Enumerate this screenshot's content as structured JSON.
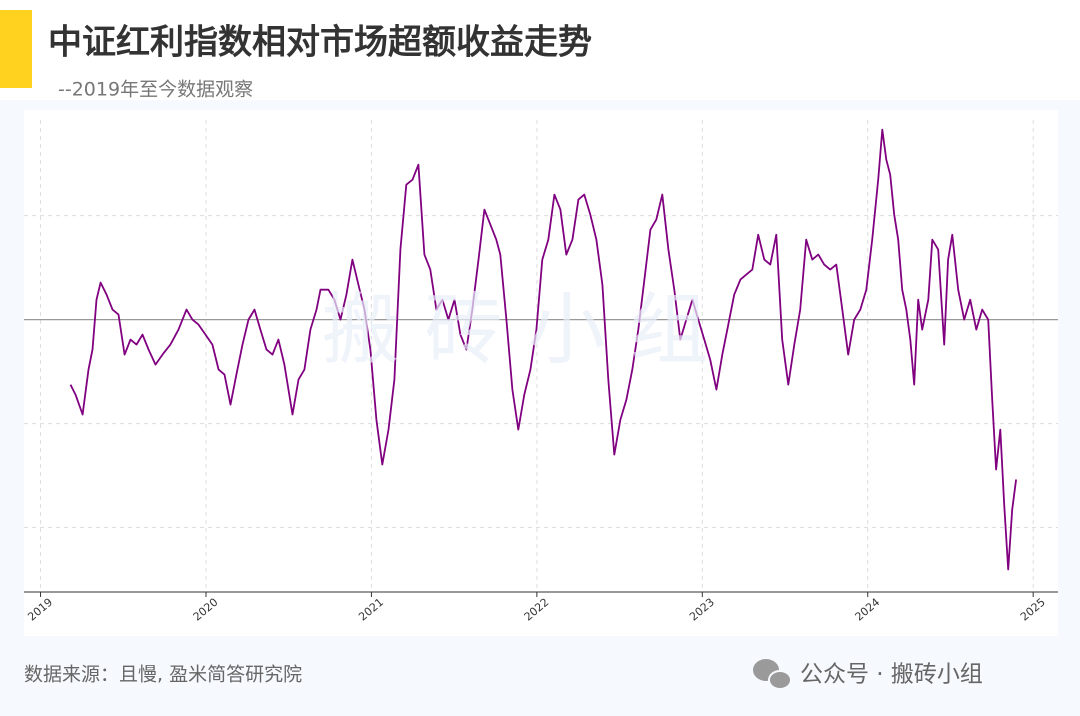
{
  "chart_data": {
    "type": "line",
    "title": "中证红利指数相对市场超额收益走势",
    "subtitle": "--2019年至今数据观察",
    "watermark": "搬 砖 小 组",
    "source": "数据来源：且慢, 盈米简答研究院",
    "brand": "公众号 · 搬砖小组",
    "color": "#800080",
    "baseline": 0,
    "xlim": [
      2018.9,
      2025.15
    ],
    "xticks": [
      2019,
      2020,
      2021,
      2022,
      2023,
      2024,
      2025
    ],
    "ylim": [
      -2.62,
      1.92
    ],
    "ygrid": [
      1,
      -1,
      -2
    ],
    "grid": true,
    "x": [
      2019.181,
      2019.211,
      2019.254,
      2019.29,
      2019.314,
      2019.338,
      2019.363,
      2019.399,
      2019.435,
      2019.471,
      2019.508,
      2019.544,
      2019.58,
      2019.616,
      2019.653,
      2019.695,
      2019.737,
      2019.785,
      2019.834,
      2019.882,
      2019.918,
      2019.955,
      2019.997,
      2020.039,
      2020.076,
      2020.112,
      2020.148,
      2020.184,
      2020.221,
      2020.257,
      2020.293,
      2020.329,
      2020.366,
      2020.402,
      2020.438,
      2020.474,
      2020.523,
      2020.559,
      2020.595,
      2020.631,
      2020.668,
      2020.692,
      2020.74,
      2020.776,
      2020.813,
      2020.849,
      2020.885,
      2020.921,
      2020.958,
      2020.994,
      2021.03,
      2021.066,
      2021.103,
      2021.139,
      2021.175,
      2021.211,
      2021.248,
      2021.284,
      2021.32,
      2021.356,
      2021.393,
      2021.429,
      2021.465,
      2021.502,
      2021.538,
      2021.574,
      2021.61,
      2021.647,
      2021.683,
      2021.719,
      2021.755,
      2021.779,
      2021.816,
      2021.852,
      2021.888,
      2021.924,
      2021.961,
      2021.997,
      2022.033,
      2022.069,
      2022.106,
      2022.142,
      2022.178,
      2022.215,
      2022.251,
      2022.287,
      2022.323,
      2022.36,
      2022.396,
      2022.432,
      2022.468,
      2022.505,
      2022.541,
      2022.577,
      2022.613,
      2022.65,
      2022.686,
      2022.722,
      2022.758,
      2022.795,
      2022.831,
      2022.867,
      2022.903,
      2022.94,
      2022.976,
      2023.012,
      2023.048,
      2023.085,
      2023.121,
      2023.157,
      2023.193,
      2023.23,
      2023.266,
      2023.302,
      2023.338,
      2023.375,
      2023.411,
      2023.447,
      2023.483,
      2023.52,
      2023.556,
      2023.592,
      2023.628,
      2023.665,
      2023.701,
      2023.737,
      2023.773,
      2023.81,
      2023.846,
      2023.882,
      2023.918,
      2023.955,
      2023.991,
      2024.027,
      2024.063,
      2024.088,
      2024.112,
      2024.136,
      2024.16,
      2024.184,
      2024.208,
      2024.233,
      2024.257,
      2024.281,
      2024.305,
      2024.329,
      2024.366,
      2024.39,
      2024.426,
      2024.462,
      2024.486,
      2024.511,
      2024.547,
      2024.583,
      2024.619,
      2024.656,
      2024.692,
      2024.728,
      2024.752,
      2024.776,
      2024.801,
      2024.825,
      2024.849,
      2024.873,
      2024.897
    ],
    "values": [
      -0.625,
      -0.721,
      -0.913,
      -0.481,
      -0.288,
      0.192,
      0.356,
      0.24,
      0.096,
      0.048,
      -0.337,
      -0.192,
      -0.24,
      -0.144,
      -0.288,
      -0.433,
      -0.337,
      -0.24,
      -0.096,
      0.096,
      0,
      -0.048,
      -0.144,
      -0.24,
      -0.481,
      -0.529,
      -0.817,
      -0.529,
      -0.24,
      0,
      0.096,
      -0.096,
      -0.288,
      -0.337,
      -0.192,
      -0.433,
      -0.913,
      -0.577,
      -0.481,
      -0.096,
      0.096,
      0.288,
      0.288,
      0.192,
      0,
      0.24,
      0.577,
      0.337,
      0.096,
      -0.288,
      -0.962,
      -1.394,
      -1.058,
      -0.577,
      0.673,
      1.298,
      1.346,
      1.49,
      0.625,
      0.481,
      0.096,
      0.192,
      0,
      0.192,
      -0.144,
      -0.288,
      0.096,
      0.577,
      1.058,
      0.913,
      0.769,
      0.625,
      0,
      -0.673,
      -1.058,
      -0.721,
      -0.481,
      -0.096,
      0.577,
      0.769,
      1.202,
      1.058,
      0.625,
      0.769,
      1.154,
      1.202,
      1.01,
      0.769,
      0.337,
      -0.577,
      -1.298,
      -0.962,
      -0.769,
      -0.481,
      -0.096,
      0.385,
      0.865,
      0.962,
      1.202,
      0.673,
      0.288,
      -0.192,
      0,
      0.192,
      0,
      -0.192,
      -0.385,
      -0.673,
      -0.337,
      -0.048,
      0.24,
      0.385,
      0.433,
      0.481,
      0.817,
      0.577,
      0.529,
      0.817,
      -0.192,
      -0.625,
      -0.24,
      0.096,
      0.769,
      0.577,
      0.625,
      0.529,
      0.481,
      0.529,
      0.096,
      -0.337,
      0,
      0.096,
      0.288,
      0.769,
      1.346,
      1.827,
      1.538,
      1.394,
      1.01,
      0.769,
      0.288,
      0.096,
      -0.192,
      -0.625,
      0.192,
      -0.096,
      0.192,
      0.769,
      0.673,
      -0.24,
      0.577,
      0.817,
      0.288,
      0,
      0.192,
      -0.096,
      0.096,
      0,
      -0.769,
      -1.442,
      -1.058,
      -1.779,
      -2.404,
      -1.827,
      -1.538
    ]
  }
}
